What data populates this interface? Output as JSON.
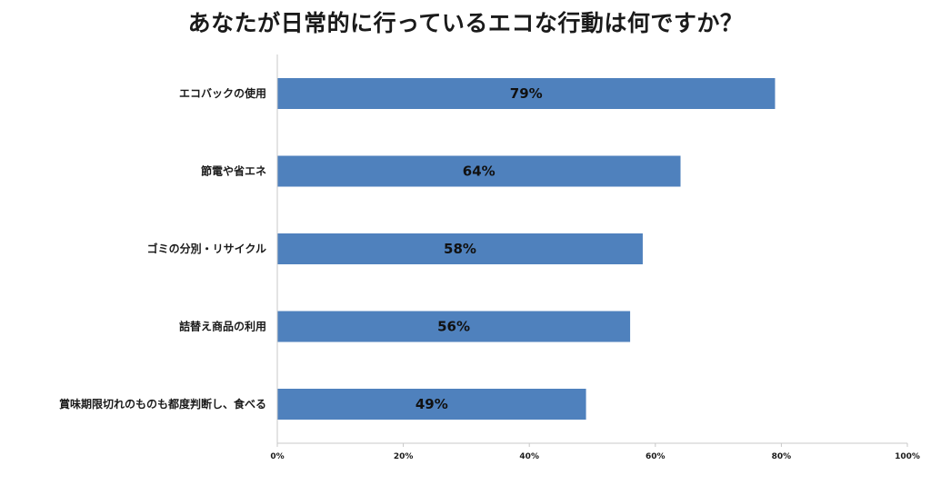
{
  "chart_data": {
    "type": "bar",
    "orientation": "horizontal",
    "title": "あなたが日常的に行っているエコな行動は何ですか？",
    "categories": [
      "エコバックの使用",
      "節電や省エネ",
      "ゴミの分別・リサイクル",
      "詰替え商品の利用",
      "賞味期限切れのものも都度判断し、食べる"
    ],
    "values": [
      79,
      64,
      58,
      56,
      49
    ],
    "data_labels": [
      "79%",
      "64%",
      "58%",
      "56%",
      "49%"
    ],
    "xlim": [
      0,
      100
    ],
    "xticks": [
      0,
      20,
      40,
      60,
      80,
      100
    ],
    "xtick_labels": [
      "0%",
      "20%",
      "40%",
      "60%",
      "80%",
      "100%"
    ],
    "xlabel": "",
    "ylabel": "",
    "grid": false,
    "legend": "none",
    "bar_color": "#4f81bd",
    "axis_color": "#c8c8c8"
  }
}
